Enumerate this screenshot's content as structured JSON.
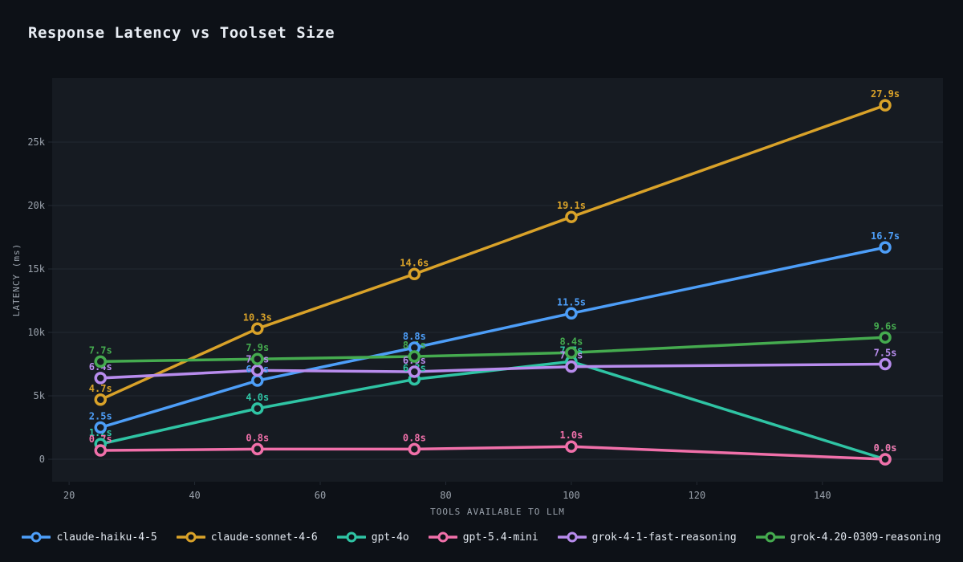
{
  "page": {
    "title": "Response Latency vs Toolset Size"
  },
  "colors": {
    "background": "#0d1117",
    "plot_background": "#161b22",
    "grid": "#232a33",
    "tick_text": "#9aa2ac",
    "title_text": "#e9eef5",
    "legend_text": "#e2e8f0"
  },
  "chart_data": {
    "type": "line",
    "title": "Response Latency vs Toolset Size",
    "xlabel": "TOOLS AVAILABLE TO LLM",
    "ylabel": "LATENCY (ms)",
    "x": [
      25,
      50,
      75,
      100,
      150
    ],
    "xticks": [
      20,
      40,
      60,
      80,
      100,
      120,
      140
    ],
    "yticks": [
      0,
      5000,
      10000,
      15000,
      20000,
      25000
    ],
    "ytick_labels": [
      "0",
      "5k",
      "10k",
      "15k",
      "20k",
      "25k"
    ],
    "xlim": [
      17.3,
      159.2
    ],
    "ylim": [
      -1770,
      30060
    ],
    "grid": "horizontal",
    "legend_position": "bottom",
    "marker": "open-circle",
    "series": [
      {
        "name": "claude-haiku-4-5",
        "color": "#4d9ef8",
        "values": [
          2500,
          6200,
          8800,
          11500,
          16700
        ],
        "labels": [
          "2.5s",
          "6.2s",
          "8.8s",
          "11.5s",
          "16.7s"
        ]
      },
      {
        "name": "claude-sonnet-4-6",
        "color": "#d9a229",
        "values": [
          4700,
          10300,
          14600,
          19100,
          27900
        ],
        "labels": [
          "4.7s",
          "10.3s",
          "14.6s",
          "19.1s",
          "27.9s"
        ]
      },
      {
        "name": "gpt-4o",
        "color": "#2fc4a4",
        "values": [
          1200,
          4000,
          6300,
          7700,
          0
        ],
        "labels": [
          "1.2s",
          "4.0s",
          "6.3s",
          "7.7s",
          "0.0s"
        ]
      },
      {
        "name": "gpt-5.4-mini",
        "color": "#f170aa",
        "values": [
          700,
          800,
          800,
          1000,
          0
        ],
        "labels": [
          "0.7s",
          "0.8s",
          "0.8s",
          "1.0s",
          "0.0s"
        ]
      },
      {
        "name": "grok-4-1-fast-reasoning",
        "color": "#b88ced",
        "values": [
          6400,
          7000,
          6900,
          7300,
          7500
        ],
        "labels": [
          "6.4s",
          "7.0s",
          "6.9s",
          "7.3s",
          "7.5s"
        ]
      },
      {
        "name": "grok-4.20-0309-reasoning",
        "color": "#45ab4f",
        "values": [
          7700,
          7900,
          8100,
          8400,
          9600
        ],
        "labels": [
          "7.7s",
          "7.9s",
          "8.1s",
          "8.4s",
          "9.6s"
        ]
      }
    ]
  }
}
